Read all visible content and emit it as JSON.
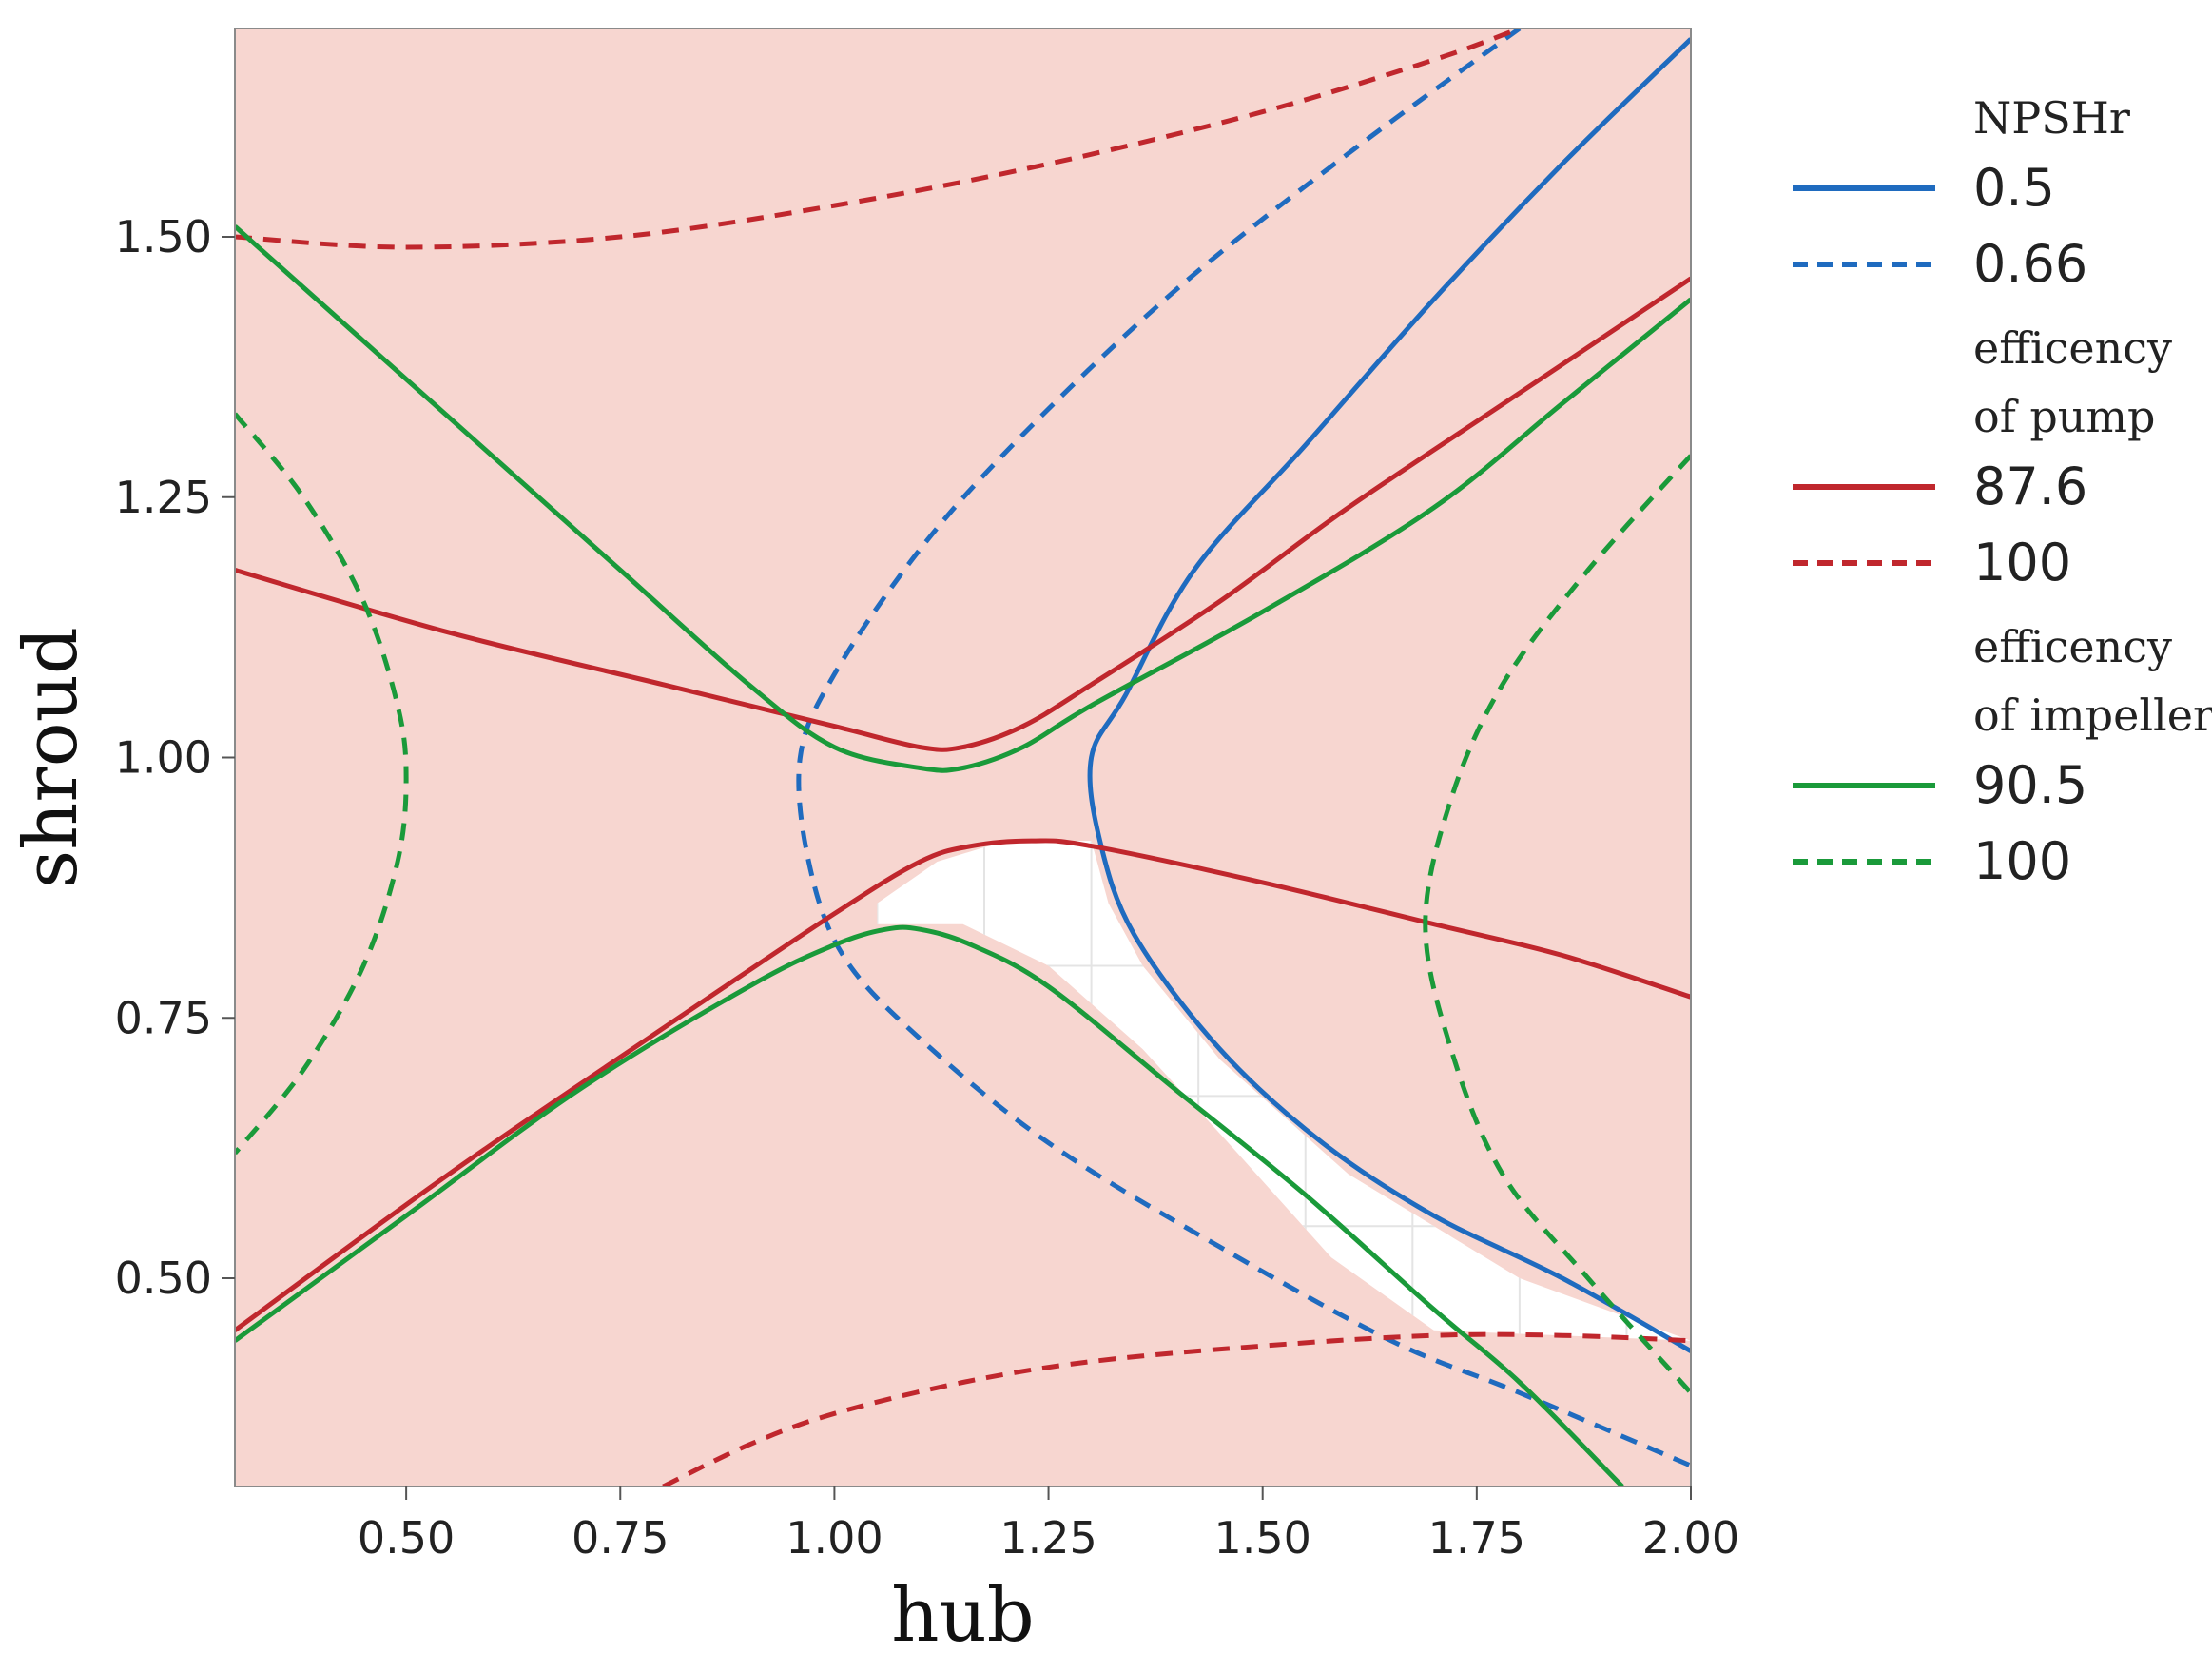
{
  "chart_data": {
    "type": "line",
    "title": "",
    "xlabel": "hub",
    "ylabel": "shroud",
    "xlim": [
      0.3,
      2.0
    ],
    "ylim": [
      0.3,
      1.7
    ],
    "x_ticks": [
      0.5,
      0.75,
      1.0,
      1.25,
      1.5,
      1.75,
      2.0
    ],
    "y_ticks": [
      0.5,
      0.75,
      1.0,
      1.25,
      1.5
    ],
    "x_tick_labels": [
      "0.50",
      "0.75",
      "1.00",
      "1.25",
      "1.50",
      "1.75",
      "2.00"
    ],
    "y_tick_labels": [
      "0.50",
      "0.75",
      "1.00",
      "1.25",
      "1.50"
    ],
    "grid": true,
    "background_color": "#f7d6d0",
    "feasible_region_color": "#ffffff",
    "legend_position": "right",
    "legend": [
      {
        "group": "NPSHr",
        "entries": [
          {
            "label": "0.5",
            "color": "#1f6bbf",
            "style": "solid"
          },
          {
            "label": "0.66",
            "color": "#1f6bbf",
            "style": "dashed"
          }
        ]
      },
      {
        "group": "efficency\nof pump",
        "entries": [
          {
            "label": "87.6",
            "color": "#c0272d",
            "style": "solid"
          },
          {
            "label": "100",
            "color": "#c0272d",
            "style": "dashed"
          }
        ]
      },
      {
        "group": "efficency\nof impeller",
        "entries": [
          {
            "label": "90.5",
            "color": "#1a9a3a",
            "style": "solid"
          },
          {
            "label": "100",
            "color": "#1a9a3a",
            "style": "dashed"
          }
        ]
      }
    ],
    "feasible_region": [
      [
        1.05,
        0.86
      ],
      [
        1.12,
        0.9
      ],
      [
        1.2,
        0.92
      ],
      [
        1.3,
        0.92
      ],
      [
        1.32,
        0.86
      ],
      [
        1.36,
        0.8
      ],
      [
        1.45,
        0.71
      ],
      [
        1.6,
        0.6
      ],
      [
        1.8,
        0.5
      ],
      [
        2.0,
        0.44
      ],
      [
        1.7,
        0.45
      ],
      [
        1.58,
        0.52
      ],
      [
        1.46,
        0.63
      ],
      [
        1.36,
        0.72
      ],
      [
        1.25,
        0.8
      ],
      [
        1.15,
        0.84
      ],
      [
        1.05,
        0.84
      ]
    ],
    "series": [
      {
        "group": "NPSHr",
        "label": "0.5",
        "color": "#1f6bbf",
        "style": "solid",
        "points": [
          [
            2.0,
            1.69
          ],
          [
            1.85,
            1.57
          ],
          [
            1.7,
            1.44
          ],
          [
            1.55,
            1.3
          ],
          [
            1.42,
            1.18
          ],
          [
            1.34,
            1.06
          ],
          [
            1.3,
            1.0
          ],
          [
            1.31,
            0.92
          ],
          [
            1.35,
            0.83
          ],
          [
            1.45,
            0.72
          ],
          [
            1.57,
            0.63
          ],
          [
            1.7,
            0.56
          ],
          [
            1.85,
            0.5
          ],
          [
            2.0,
            0.43
          ]
        ]
      },
      {
        "group": "NPSHr",
        "label": "0.66",
        "color": "#1f6bbf",
        "style": "dashed",
        "points": [
          [
            1.8,
            1.7
          ],
          [
            1.6,
            1.58
          ],
          [
            1.4,
            1.45
          ],
          [
            1.22,
            1.31
          ],
          [
            1.1,
            1.2
          ],
          [
            1.0,
            1.08
          ],
          [
            0.96,
            1.0
          ],
          [
            0.97,
            0.9
          ],
          [
            1.01,
            0.81
          ],
          [
            1.1,
            0.73
          ],
          [
            1.25,
            0.63
          ],
          [
            1.45,
            0.53
          ],
          [
            1.65,
            0.44
          ],
          [
            1.8,
            0.39
          ],
          [
            2.0,
            0.32
          ]
        ]
      },
      {
        "group": "efficency of pump",
        "label": "87.6",
        "color": "#c0272d",
        "style": "solid",
        "points": [
          [
            0.3,
            1.18
          ],
          [
            0.55,
            1.12
          ],
          [
            0.8,
            1.07
          ],
          [
            1.0,
            1.03
          ],
          [
            1.1,
            1.01
          ],
          [
            1.15,
            1.01
          ],
          [
            1.22,
            1.03
          ],
          [
            1.3,
            1.07
          ],
          [
            1.45,
            1.15
          ],
          [
            1.6,
            1.24
          ],
          [
            1.8,
            1.35
          ],
          [
            2.0,
            1.46
          ]
        ]
      },
      {
        "group": "efficency of pump",
        "label": "87.6",
        "color": "#c0272d",
        "style": "solid",
        "points": [
          [
            0.3,
            0.45
          ],
          [
            0.55,
            0.6
          ],
          [
            0.8,
            0.74
          ],
          [
            1.0,
            0.85
          ],
          [
            1.1,
            0.9
          ],
          [
            1.16,
            0.915
          ],
          [
            1.23,
            0.92
          ],
          [
            1.3,
            0.915
          ],
          [
            1.5,
            0.88
          ],
          [
            1.7,
            0.84
          ],
          [
            1.85,
            0.81
          ],
          [
            2.0,
            0.77
          ]
        ]
      },
      {
        "group": "efficency of pump",
        "label": "100",
        "color": "#c0272d",
        "style": "dashed",
        "points": [
          [
            0.3,
            1.5
          ],
          [
            0.5,
            1.49
          ],
          [
            0.75,
            1.5
          ],
          [
            1.0,
            1.53
          ],
          [
            1.25,
            1.57
          ],
          [
            1.5,
            1.62
          ],
          [
            1.7,
            1.67
          ],
          [
            1.8,
            1.7
          ]
        ]
      },
      {
        "group": "efficency of pump",
        "label": "100",
        "color": "#c0272d",
        "style": "dashed",
        "points": [
          [
            0.8,
            0.3
          ],
          [
            0.9,
            0.34
          ],
          [
            1.0,
            0.37
          ],
          [
            1.15,
            0.4
          ],
          [
            1.3,
            0.42
          ],
          [
            1.5,
            0.435
          ],
          [
            1.7,
            0.445
          ],
          [
            1.85,
            0.445
          ],
          [
            2.0,
            0.44
          ]
        ]
      },
      {
        "group": "efficency of impeller",
        "label": "90.5",
        "color": "#1a9a3a",
        "style": "solid",
        "points": [
          [
            0.3,
            1.51
          ],
          [
            0.45,
            1.4
          ],
          [
            0.6,
            1.29
          ],
          [
            0.75,
            1.18
          ],
          [
            0.9,
            1.07
          ],
          [
            1.0,
            1.01
          ],
          [
            1.1,
            0.99
          ],
          [
            1.15,
            0.99
          ],
          [
            1.22,
            1.01
          ],
          [
            1.3,
            1.05
          ],
          [
            1.5,
            1.14
          ],
          [
            1.7,
            1.24
          ],
          [
            1.85,
            1.34
          ],
          [
            2.0,
            1.44
          ]
        ]
      },
      {
        "group": "efficency of impeller",
        "label": "90.5",
        "color": "#1a9a3a",
        "style": "solid",
        "points": [
          [
            0.3,
            0.44
          ],
          [
            0.5,
            0.56
          ],
          [
            0.7,
            0.68
          ],
          [
            0.9,
            0.78
          ],
          [
            1.0,
            0.82
          ],
          [
            1.06,
            0.835
          ],
          [
            1.1,
            0.835
          ],
          [
            1.16,
            0.82
          ],
          [
            1.25,
            0.78
          ],
          [
            1.4,
            0.68
          ],
          [
            1.55,
            0.58
          ],
          [
            1.7,
            0.47
          ],
          [
            1.8,
            0.4
          ],
          [
            1.92,
            0.3
          ]
        ]
      },
      {
        "group": "efficency of impeller",
        "label": "100",
        "color": "#1a9a3a",
        "style": "dashed",
        "points": [
          [
            0.3,
            1.33
          ],
          [
            0.38,
            1.25
          ],
          [
            0.45,
            1.15
          ],
          [
            0.49,
            1.05
          ],
          [
            0.5,
            0.98
          ],
          [
            0.49,
            0.9
          ],
          [
            0.45,
            0.8
          ],
          [
            0.38,
            0.7
          ],
          [
            0.3,
            0.62
          ]
        ]
      },
      {
        "group": "efficency of impeller",
        "label": "100",
        "color": "#1a9a3a",
        "style": "dashed",
        "points": [
          [
            2.0,
            1.29
          ],
          [
            1.88,
            1.18
          ],
          [
            1.78,
            1.07
          ],
          [
            1.72,
            0.96
          ],
          [
            1.69,
            0.84
          ],
          [
            1.72,
            0.72
          ],
          [
            1.78,
            0.6
          ],
          [
            1.88,
            0.5
          ],
          [
            2.0,
            0.39
          ]
        ]
      }
    ]
  }
}
